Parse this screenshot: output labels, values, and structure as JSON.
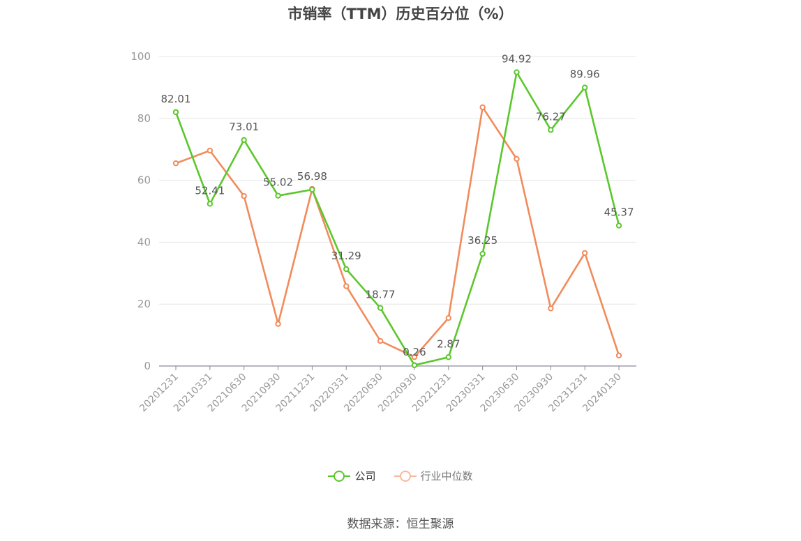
{
  "colors": {
    "company": "#5bc72c",
    "industry": "#f28b5b",
    "industry_legend": "#f7b8a0",
    "grid": "#e6e6e6",
    "axis": "#8a8a9a",
    "tick_text": "#999999",
    "label_text": "#555555"
  },
  "source_text": "数据来源：恒生聚源",
  "chart_data": {
    "type": "line",
    "title": "市销率（TTM）历史百分位（%）",
    "xlabel": "",
    "ylabel": "",
    "ylim": [
      0,
      100
    ],
    "yticks": [
      0,
      20,
      40,
      60,
      80,
      100
    ],
    "grid": true,
    "legend_position": "bottom",
    "categories": [
      "20201231",
      "20210331",
      "20210630",
      "20210930",
      "20211231",
      "20220331",
      "20220630",
      "20220930",
      "20221231",
      "20230331",
      "20230630",
      "20230930",
      "20231231",
      "20240130"
    ],
    "series": [
      {
        "name": "公司",
        "color": "#5bc72c",
        "values": [
          82.01,
          52.41,
          73.01,
          55.02,
          56.98,
          31.29,
          18.77,
          0.26,
          2.87,
          36.25,
          94.92,
          76.27,
          89.96,
          45.37
        ],
        "data_labels": [
          "82.01",
          "52.41",
          "73.01",
          "55.02",
          "56.98",
          "31.29",
          "18.77",
          "0.26",
          "2.87",
          "36.25",
          "94.92",
          "76.27",
          "89.96",
          "45.37"
        ]
      },
      {
        "name": "行业中位数",
        "color": "#f28b5b",
        "values": [
          65.5,
          69.6,
          54.9,
          13.6,
          57.2,
          25.8,
          8.1,
          2.9,
          15.5,
          83.6,
          66.9,
          18.6,
          36.5,
          3.4
        ]
      }
    ]
  }
}
